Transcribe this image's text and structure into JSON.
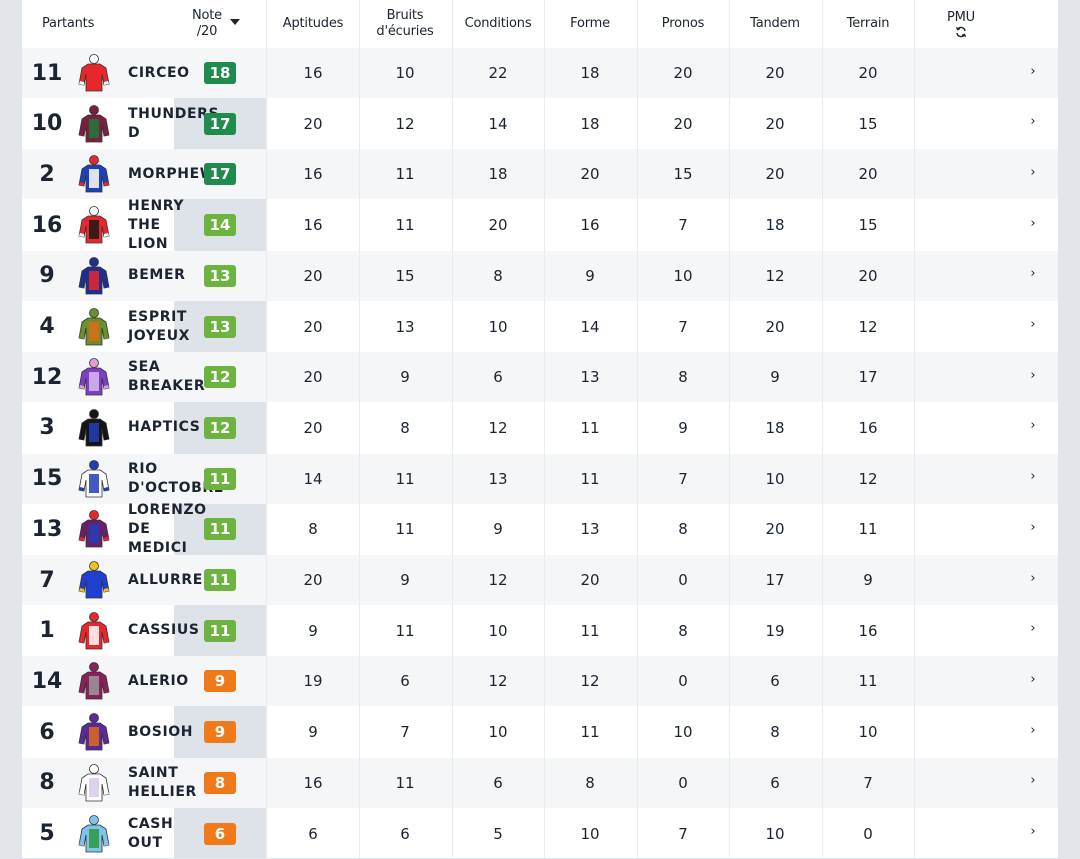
{
  "header": {
    "partants": "Partants",
    "note_line1": "Note",
    "note_line2": "/20",
    "aptitudes": "Aptitudes",
    "bruits_line1": "Bruits",
    "bruits_line2": "d'écuries",
    "conditions": "Conditions",
    "forme": "Forme",
    "pronos": "Pronos",
    "tandem": "Tandem",
    "terrain": "Terrain",
    "pmu": "PMU",
    "pmu_icon": "refresh-icon",
    "sort_icon": "caret-down-icon"
  },
  "colors": {
    "dark_green": "#1f8b4c",
    "light_green": "#6db33f",
    "orange": "#f07a1a"
  },
  "rows": [
    {
      "num": "11",
      "name": "CIRCEO",
      "note": "18",
      "tier": "dark_green",
      "aptitudes": "16",
      "bruits": "10",
      "conditions": "22",
      "forme": "18",
      "pronos": "20",
      "tandem": "20",
      "terrain": "20",
      "silk": [
        "#e8272c",
        "#e8272c",
        "#ffffff"
      ]
    },
    {
      "num": "10",
      "name": "THUNDERSTRUCK",
      "display": "THUNDERS      D",
      "note": "17",
      "tier": "dark_green",
      "aptitudes": "20",
      "bruits": "12",
      "conditions": "14",
      "forme": "18",
      "pronos": "20",
      "tandem": "20",
      "terrain": "15",
      "silk": [
        "#7a1f3d",
        "#1e7a3c",
        "#7a1f3d"
      ]
    },
    {
      "num": "2",
      "name": "MORPHEW",
      "note": "17",
      "tier": "dark_green",
      "aptitudes": "16",
      "bruits": "11",
      "conditions": "18",
      "forme": "20",
      "pronos": "15",
      "tandem": "20",
      "terrain": "20",
      "silk": [
        "#1f3fb8",
        "#ffffff",
        "#e8272c"
      ]
    },
    {
      "num": "16",
      "name": "HENRY\nTHE\nLION",
      "note": "14",
      "tier": "light_green",
      "aptitudes": "16",
      "bruits": "11",
      "conditions": "20",
      "forme": "16",
      "pronos": "7",
      "tandem": "18",
      "terrain": "15",
      "silk": [
        "#e8272c",
        "#1a1a1a",
        "#ffffff"
      ]
    },
    {
      "num": "9",
      "name": "BEMER",
      "note": "13",
      "tier": "light_green",
      "aptitudes": "20",
      "bruits": "15",
      "conditions": "8",
      "forme": "9",
      "pronos": "10",
      "tandem": "12",
      "terrain": "20",
      "silk": [
        "#1f2f8f",
        "#e8272c",
        "#1f2f8f"
      ]
    },
    {
      "num": "4",
      "name": "ESPRIT\nJOYEUX",
      "note": "13",
      "tier": "light_green",
      "aptitudes": "20",
      "bruits": "13",
      "conditions": "10",
      "forme": "14",
      "pronos": "7",
      "tandem": "20",
      "terrain": "12",
      "silk": [
        "#6b8f2a",
        "#e06a1a",
        "#6b8f2a"
      ]
    },
    {
      "num": "12",
      "name": "SEA\nBREAKER",
      "note": "12",
      "tier": "light_green",
      "aptitudes": "20",
      "bruits": "9",
      "conditions": "6",
      "forme": "13",
      "pronos": "8",
      "tandem": "9",
      "terrain": "17",
      "silk": [
        "#7b3fc4",
        "#d9b8f0",
        "#e39ad8"
      ]
    },
    {
      "num": "3",
      "name": "HAPTICS",
      "note": "12",
      "tier": "light_green",
      "aptitudes": "20",
      "bruits": "8",
      "conditions": "12",
      "forme": "11",
      "pronos": "9",
      "tandem": "18",
      "terrain": "16",
      "silk": [
        "#151515",
        "#1f3fb8",
        "#151515"
      ]
    },
    {
      "num": "15",
      "name": "RIO\nD'OCTOBRE",
      "note": "11",
      "tier": "light_green",
      "aptitudes": "14",
      "bruits": "11",
      "conditions": "13",
      "forme": "11",
      "pronos": "7",
      "tandem": "10",
      "terrain": "12",
      "silk": [
        "#ffffff",
        "#1f3fb8",
        "#1f3fb8"
      ]
    },
    {
      "num": "13",
      "name": "LORENZO\nDE\nMEDICI",
      "note": "11",
      "tier": "light_green",
      "aptitudes": "8",
      "bruits": "11",
      "conditions": "9",
      "forme": "13",
      "pronos": "8",
      "tandem": "20",
      "terrain": "11",
      "silk": [
        "#6a1f6a",
        "#1f3fb8",
        "#e8272c"
      ]
    },
    {
      "num": "7",
      "name": "ALLURRE",
      "note": "11",
      "tier": "light_green",
      "aptitudes": "20",
      "bruits": "9",
      "conditions": "12",
      "forme": "20",
      "pronos": "0",
      "tandem": "17",
      "terrain": "9",
      "silk": [
        "#1f3fd0",
        "#1f3fd0",
        "#f0c020"
      ]
    },
    {
      "num": "1",
      "name": "CASSIUS",
      "note": "11",
      "tier": "light_green",
      "aptitudes": "9",
      "bruits": "11",
      "conditions": "10",
      "forme": "11",
      "pronos": "8",
      "tandem": "19",
      "terrain": "16",
      "silk": [
        "#e8272c",
        "#ffffff",
        "#e8272c"
      ]
    },
    {
      "num": "14",
      "name": "ALERIO",
      "note": "9",
      "tier": "orange",
      "aptitudes": "19",
      "bruits": "6",
      "conditions": "12",
      "forme": "12",
      "pronos": "0",
      "tandem": "6",
      "terrain": "11",
      "silk": [
        "#8a1f5a",
        "#9a9a9a",
        "#8a1f5a"
      ]
    },
    {
      "num": "6",
      "name": "BOSIOH",
      "note": "9",
      "tier": "orange",
      "aptitudes": "9",
      "bruits": "7",
      "conditions": "10",
      "forme": "11",
      "pronos": "10",
      "tandem": "8",
      "terrain": "10",
      "silk": [
        "#5a2a9a",
        "#e06a1a",
        "#5a2a9a"
      ]
    },
    {
      "num": "8",
      "name": "SAINT\nHELLIER",
      "note": "8",
      "tier": "orange",
      "aptitudes": "16",
      "bruits": "11",
      "conditions": "6",
      "forme": "8",
      "pronos": "0",
      "tandem": "6",
      "terrain": "7",
      "silk": [
        "#ffffff",
        "#d9c8e8",
        "#ffffff"
      ]
    },
    {
      "num": "5",
      "name": "CASH\nOUT",
      "note": "6",
      "tier": "orange",
      "aptitudes": "6",
      "bruits": "6",
      "conditions": "5",
      "forme": "10",
      "pronos": "7",
      "tandem": "10",
      "terrain": "0",
      "silk": [
        "#7fc4ec",
        "#2a9a3c",
        "#7fc4ec"
      ]
    }
  ],
  "row_chevron": "›"
}
